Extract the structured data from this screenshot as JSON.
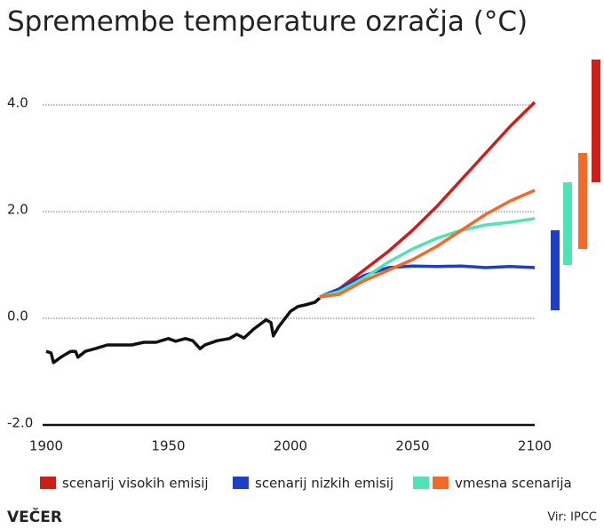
{
  "chart_data": {
    "type": "line",
    "title": "Spremembe temperature ozračja (°C)",
    "xlim": [
      1900,
      2100
    ],
    "xticks": [
      1900,
      1950,
      2000,
      2050,
      2100
    ],
    "ylim": [
      -2,
      5
    ],
    "yticks": [
      {
        "value": -2,
        "label": "-2.0"
      },
      {
        "value": 0,
        "label": "0.0"
      },
      {
        "value": 2,
        "label": "2.0"
      },
      {
        "value": 4,
        "label": "4.0"
      }
    ],
    "grid": true,
    "series": [
      {
        "color": "#111111",
        "x": [
          1900,
          1902,
          1903,
          1906,
          1910,
          1912,
          1913,
          1916,
          1920,
          1925,
          1935,
          1940,
          1945,
          1950,
          1953,
          1957,
          1960,
          1963,
          1965,
          1970,
          1975,
          1978,
          1981,
          1985,
          1990,
          1992,
          1993,
          1995,
          2000,
          2003,
          2006,
          2010,
          2012
        ],
        "values": [
          -0.62,
          -0.65,
          -0.83,
          -0.73,
          -0.62,
          -0.62,
          -0.73,
          -0.62,
          -0.57,
          -0.5,
          -0.5,
          -0.45,
          -0.45,
          -0.38,
          -0.43,
          -0.38,
          -0.42,
          -0.57,
          -0.5,
          -0.42,
          -0.38,
          -0.3,
          -0.37,
          -0.2,
          -0.03,
          -0.08,
          -0.33,
          -0.17,
          0.13,
          0.22,
          0.25,
          0.3,
          0.38
        ]
      },
      {
        "color": "#cc1f1a",
        "x": [
          2012,
          2020,
          2030,
          2040,
          2050,
          2060,
          2070,
          2080,
          2090,
          2100
        ],
        "values": [
          0.4,
          0.55,
          0.9,
          1.25,
          1.65,
          2.1,
          2.6,
          3.1,
          3.6,
          4.05
        ],
        "range": [
          2.55,
          4.85
        ]
      },
      {
        "color": "#1e3fc4",
        "x": [
          2012,
          2020,
          2030,
          2040,
          2050,
          2060,
          2070,
          2080,
          2090,
          2100
        ],
        "values": [
          0.4,
          0.55,
          0.8,
          0.95,
          0.98,
          0.97,
          0.98,
          0.95,
          0.97,
          0.95
        ],
        "range": [
          0.15,
          1.65
        ]
      },
      {
        "color": "#4fe3b6",
        "x": [
          2012,
          2020,
          2030,
          2040,
          2050,
          2060,
          2070,
          2080,
          2090,
          2100
        ],
        "values": [
          0.4,
          0.5,
          0.75,
          1.05,
          1.3,
          1.5,
          1.65,
          1.75,
          1.8,
          1.87
        ],
        "range": [
          1.0,
          2.55
        ]
      },
      {
        "color": "#f26a2a",
        "x": [
          2012,
          2020,
          2030,
          2040,
          2050,
          2060,
          2070,
          2080,
          2090,
          2100
        ],
        "values": [
          0.4,
          0.45,
          0.7,
          0.9,
          1.1,
          1.35,
          1.65,
          1.95,
          2.2,
          2.4
        ],
        "range": [
          1.3,
          3.1
        ]
      }
    ],
    "legend": [
      {
        "label": "scenarij visokih emisij",
        "colors": [
          "#cc1f1a"
        ]
      },
      {
        "label": "scenarij nizkih emisij",
        "colors": [
          "#1e3fc4"
        ]
      },
      {
        "label": "vmesna scenarija",
        "colors": [
          "#4fe3b6",
          "#f26a2a"
        ]
      }
    ]
  },
  "footer": {
    "brand": "VEČER",
    "source": "Vir: IPCC"
  }
}
